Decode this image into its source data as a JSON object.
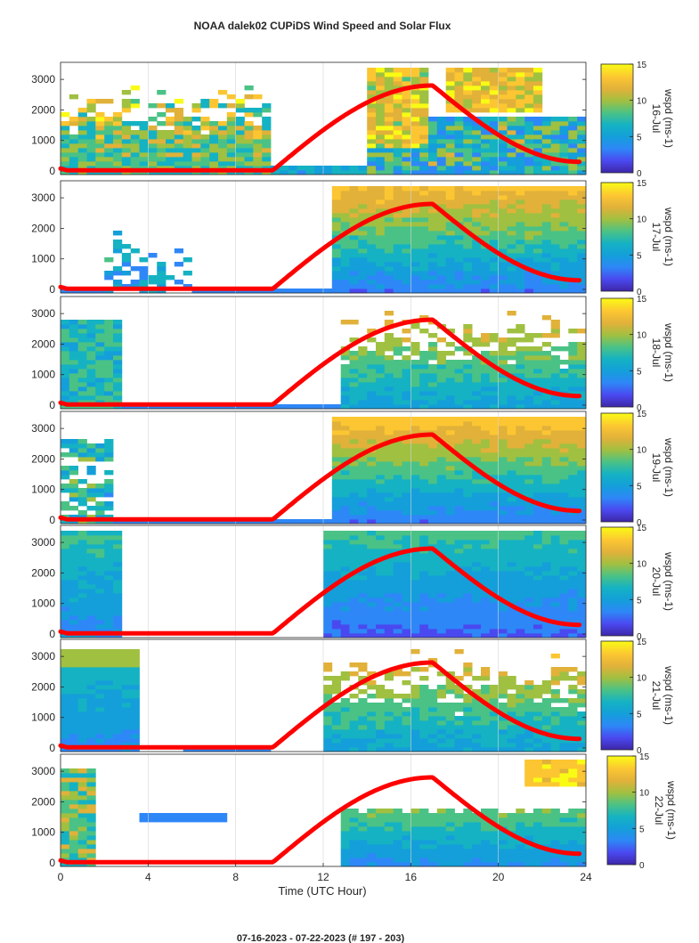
{
  "title": "NOAA dalek02 CUPiDS Wind Speed and Solar Flux",
  "footer": "07-16-2023 - 07-22-2023   (# 197 - 203)",
  "xlabel": "Time (UTC Hour)",
  "colors": {
    "solar_flux_line": "#ff0000",
    "colormap": [
      "#3e26a8",
      "#4a49f0",
      "#2e87f7",
      "#149fda",
      "#15b2c3",
      "#4ac286",
      "#a0c041",
      "#e1b13a",
      "#fcc632",
      "#f9fb15"
    ]
  },
  "chart_data": {
    "type": "heatmap",
    "title": "NOAA dalek02 CUPiDS Wind Speed and Solar Flux",
    "xlabel": "Time (UTC Hour)",
    "xlim": [
      0,
      24
    ],
    "xticks": [
      "0",
      "4",
      "8",
      "12",
      "16",
      "20",
      "24"
    ],
    "ylim": [
      0,
      3500
    ],
    "yticks": [
      "0",
      "1000",
      "2000",
      "3000"
    ],
    "grid": true,
    "colorbar": {
      "label": "wspd (ms-1)",
      "range": [
        0,
        15
      ],
      "ticks": [
        "0",
        "5",
        "10",
        "15"
      ]
    },
    "solar_flux": {
      "color": "red",
      "zero_until_hour": 9.7,
      "peak_hour": 17,
      "peak_height": 2800,
      "end_height": 300
    },
    "panels": [
      {
        "date": "16-Jul",
        "zlabel": "wspd (ms-1)\n16-Jul"
      },
      {
        "date": "17-Jul",
        "zlabel": "wspd (ms-1)\n17-Jul"
      },
      {
        "date": "18-Jul",
        "zlabel": "wspd (ms-1)\n18-Jul"
      },
      {
        "date": "19-Jul",
        "zlabel": "wspd (ms-1)\n19-Jul"
      },
      {
        "date": "20-Jul",
        "zlabel": "wspd (ms-1)\n20-Jul"
      },
      {
        "date": "21-Jul",
        "zlabel": "wspd (ms-1)\n21-Jul"
      },
      {
        "date": "22-Jul",
        "zlabel": "wspd (ms-1)\n22-Jul"
      }
    ]
  }
}
